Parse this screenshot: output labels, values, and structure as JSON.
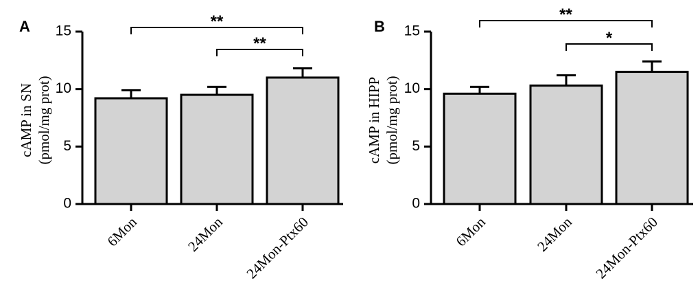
{
  "chart_data": [
    {
      "type": "bar",
      "panel_label": "A",
      "categories": [
        "6Mon",
        "24Mon",
        "24Mon-Ptx60"
      ],
      "values": [
        9.2,
        9.5,
        11.0
      ],
      "error_plus": [
        0.7,
        0.7,
        0.8
      ],
      "ylabel_line1": "cAMP in SN",
      "ylabel_line2": "(pmol/mg prot)",
      "ylim": [
        0,
        15
      ],
      "yticks": [
        0,
        5,
        10,
        15
      ],
      "ytick_labels": [
        "0",
        "5",
        "10",
        "15"
      ],
      "significance": [
        {
          "from": 0,
          "to": 2,
          "label": "**",
          "level": 0
        },
        {
          "from": 1,
          "to": 2,
          "label": "**",
          "level": 1
        }
      ]
    },
    {
      "type": "bar",
      "panel_label": "B",
      "categories": [
        "6Mon",
        "24Mon",
        "24Mon-Ptx60"
      ],
      "values": [
        9.6,
        10.3,
        11.5
      ],
      "error_plus": [
        0.6,
        0.9,
        0.9
      ],
      "ylabel_line1": "cAMP in HIPP",
      "ylabel_line2": "(pmol/mg prot)",
      "ylim": [
        0,
        15
      ],
      "yticks": [
        0,
        5,
        10,
        15
      ],
      "ytick_labels": [
        "0",
        "5",
        "10",
        "15"
      ],
      "significance": [
        {
          "from": 0,
          "to": 2,
          "label": "**",
          "level": 0
        },
        {
          "from": 1,
          "to": 2,
          "label": "*",
          "level": 1
        }
      ]
    }
  ]
}
